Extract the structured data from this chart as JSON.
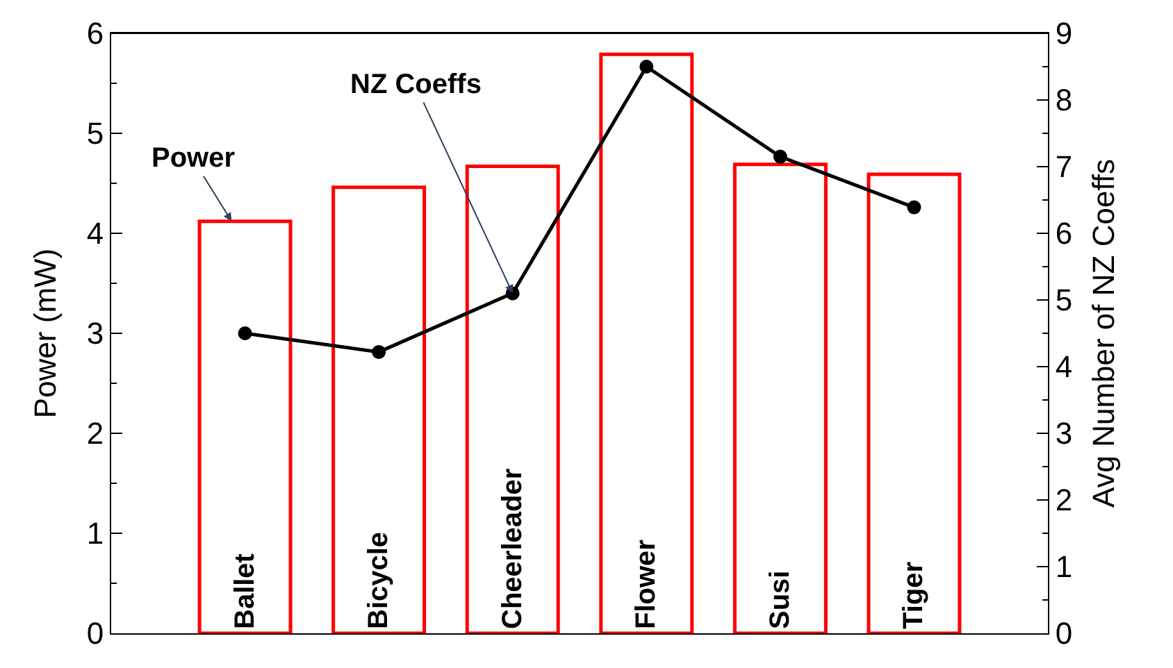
{
  "chart_data": {
    "type": "bar",
    "categories": [
      "Ballet",
      "Bicycle",
      "Cheerleader",
      "Flower",
      "Susi",
      "Tiger"
    ],
    "ylabel": "Power (mW)",
    "y2label": "Avg Number of NZ Coeffs",
    "ylim": [
      0,
      6
    ],
    "yticks": [
      0,
      1,
      2,
      3,
      4,
      5,
      6
    ],
    "y2lim": [
      0,
      9
    ],
    "y2ticks": [
      0,
      1,
      2,
      3,
      4,
      5,
      6,
      7,
      8,
      9
    ],
    "series": [
      {
        "color": "#ff0000",
        "values": [
          4.12,
          4.46,
          4.67,
          5.79,
          4.69,
          4.59
        ]
      },
      {
        "type": "line",
        "axis": "y2",
        "color": "#000000",
        "marker": "circle",
        "line_style": "solid",
        "values": [
          4.5,
          4.22,
          5.1,
          8.5,
          7.15,
          6.39
        ]
      }
    ],
    "annotations": [
      {
        "text": "Power",
        "x": "Ballet",
        "y": 4.12
      },
      {
        "text": "NZ Coeffs",
        "x": "Cheerleader",
        "y": 3.4
      }
    ]
  }
}
